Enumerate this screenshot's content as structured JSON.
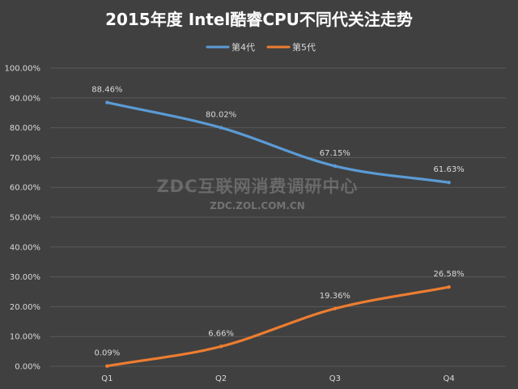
{
  "chart_data": {
    "type": "line",
    "title": "2015年度 Intel酷睿CPU不同代关注走势",
    "categories": [
      "Q1",
      "Q2",
      "Q3",
      "Q4"
    ],
    "series": [
      {
        "name": "第4代",
        "values": [
          88.46,
          80.02,
          67.15,
          61.63
        ],
        "labels": [
          "88.46%",
          "80.02%",
          "67.15%",
          "61.63%"
        ],
        "color": "#5b9bd5"
      },
      {
        "name": "第5代",
        "values": [
          0.09,
          6.66,
          19.36,
          26.58
        ],
        "labels": [
          "0.09%",
          "6.66%",
          "19.36%",
          "26.58%"
        ],
        "color": "#ed7d31"
      }
    ],
    "ylim": [
      0,
      100
    ],
    "yticks": [
      0,
      10,
      20,
      30,
      40,
      50,
      60,
      70,
      80,
      90,
      100
    ],
    "ytick_labels": [
      "0.00%",
      "10.00%",
      "20.00%",
      "30.00%",
      "40.00%",
      "50.00%",
      "60.00%",
      "70.00%",
      "80.00%",
      "90.00%",
      "100.00%"
    ],
    "xlabel": "",
    "ylabel": "",
    "legend": "top-center",
    "grid": true,
    "smooth": true
  },
  "watermark": {
    "main": "ZDC互联网消费调研中心",
    "sub": "ZDC.ZOL.COM.CN"
  },
  "colors": {
    "background": "#404040",
    "grid": "#595959",
    "text": "#d9d9d9",
    "title": "#ffffff"
  }
}
